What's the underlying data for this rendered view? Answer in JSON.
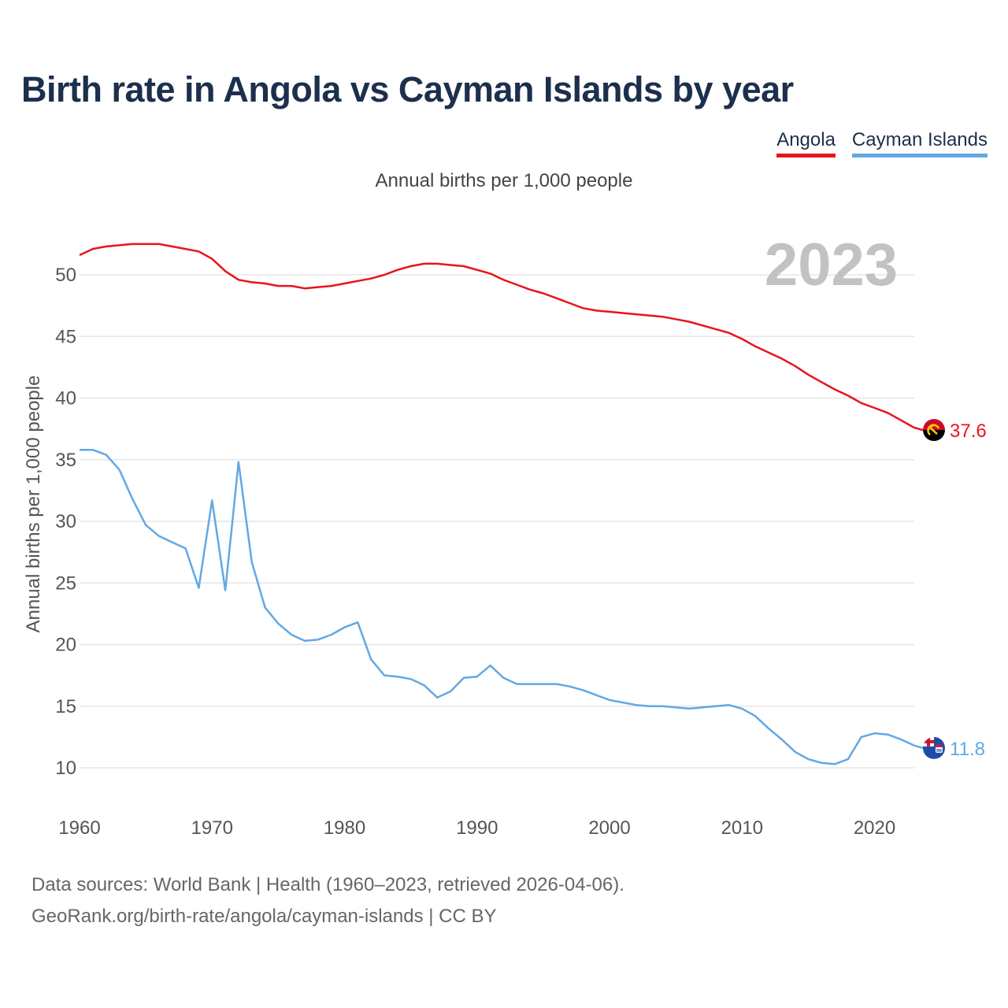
{
  "title": "Birth rate in Angola vs Cayman Islands by year",
  "subtitle": "Annual births per 1,000 people",
  "legend": [
    {
      "label": "Angola",
      "color": "#e8141b"
    },
    {
      "label": "Cayman Islands",
      "color": "#62a8e5"
    }
  ],
  "year_watermark": "2023",
  "footer": {
    "line1": "Data sources: World Bank | Health (1960–2023, retrieved 2026-04-06).",
    "line2": "GeoRank.org/birth-rate/angola/cayman-islands | CC BY"
  },
  "chart_data": {
    "type": "line",
    "title": "Birth rate in Angola vs Cayman Islands by year",
    "xlabel": "",
    "ylabel": "Annual births per 1,000 people",
    "xlim": [
      1960,
      2023
    ],
    "ylim": [
      10,
      52
    ],
    "x_ticks": [
      1960,
      1970,
      1980,
      1990,
      2000,
      2010,
      2020
    ],
    "y_ticks": [
      10,
      15,
      20,
      25,
      30,
      35,
      40,
      45,
      50
    ],
    "grid": true,
    "x": [
      1960,
      1961,
      1962,
      1963,
      1964,
      1965,
      1966,
      1967,
      1968,
      1969,
      1970,
      1971,
      1972,
      1973,
      1974,
      1975,
      1976,
      1977,
      1978,
      1979,
      1980,
      1981,
      1982,
      1983,
      1984,
      1985,
      1986,
      1987,
      1988,
      1989,
      1990,
      1991,
      1992,
      1993,
      1994,
      1995,
      1996,
      1997,
      1998,
      1999,
      2000,
      2001,
      2002,
      2003,
      2004,
      2005,
      2006,
      2007,
      2008,
      2009,
      2010,
      2011,
      2012,
      2013,
      2014,
      2015,
      2016,
      2017,
      2018,
      2019,
      2020,
      2021,
      2022,
      2023
    ],
    "series": [
      {
        "name": "Angola",
        "color": "#e8141b",
        "end_label": "37.6",
        "flag": "angola-flag-icon",
        "values": [
          51.6,
          52.1,
          52.3,
          52.4,
          52.5,
          52.5,
          52.5,
          52.3,
          52.1,
          51.9,
          51.3,
          50.3,
          49.6,
          49.4,
          49.3,
          49.1,
          49.1,
          48.9,
          49.0,
          49.1,
          49.3,
          49.5,
          49.7,
          50.0,
          50.4,
          50.7,
          50.9,
          50.9,
          50.8,
          50.7,
          50.4,
          50.1,
          49.6,
          49.2,
          48.8,
          48.5,
          48.1,
          47.7,
          47.3,
          47.1,
          47.0,
          46.9,
          46.8,
          46.7,
          46.6,
          46.4,
          46.2,
          45.9,
          45.6,
          45.3,
          44.8,
          44.2,
          43.7,
          43.2,
          42.6,
          41.9,
          41.3,
          40.7,
          40.2,
          39.6,
          39.2,
          38.8,
          38.2,
          37.6
        ]
      },
      {
        "name": "Cayman Islands",
        "color": "#62a8e5",
        "end_label": "11.8",
        "flag": "cayman-islands-flag-icon",
        "values": [
          35.8,
          35.8,
          35.4,
          34.2,
          31.8,
          29.7,
          28.8,
          28.3,
          27.8,
          24.6,
          31.7,
          24.4,
          34.8,
          26.7,
          23.0,
          21.7,
          20.8,
          20.3,
          20.4,
          20.8,
          21.4,
          21.8,
          18.8,
          17.5,
          17.4,
          17.2,
          16.7,
          15.7,
          16.2,
          17.3,
          17.4,
          18.3,
          17.3,
          16.8,
          16.8,
          16.8,
          16.8,
          16.6,
          16.3,
          15.9,
          15.5,
          15.3,
          15.1,
          15.0,
          15.0,
          14.9,
          14.8,
          14.9,
          15.0,
          15.1,
          14.8,
          14.2,
          13.2,
          12.3,
          11.3,
          10.7,
          10.4,
          10.3,
          10.7,
          12.5,
          12.8,
          12.7,
          12.3,
          11.8
        ]
      }
    ]
  }
}
